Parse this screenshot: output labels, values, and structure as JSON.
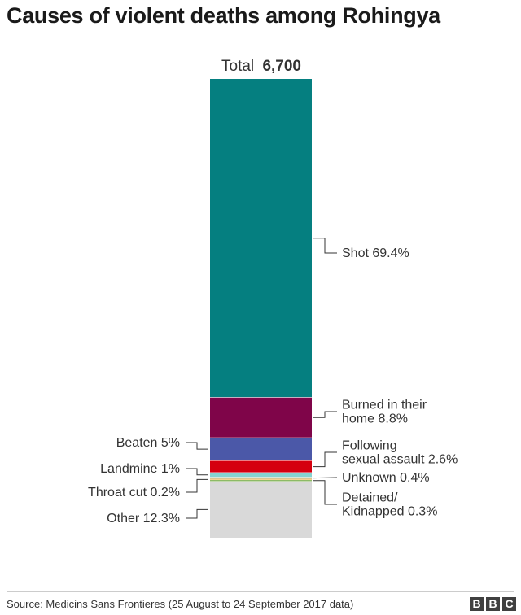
{
  "title": "Causes of violent deaths among Rohingya",
  "chart_data": {
    "type": "bar",
    "stacked": true,
    "total_label": "Total",
    "total_value": "6,700",
    "segments": [
      {
        "name": "Shot",
        "value": 69.4,
        "label": [
          "Shot 69.4%"
        ],
        "color": "#057f80",
        "side": "right"
      },
      {
        "name": "Burned in their home",
        "value": 8.8,
        "label": [
          "Burned in their",
          "home 8.8%"
        ],
        "color": "#7f0549",
        "side": "right"
      },
      {
        "name": "Beaten",
        "value": 5,
        "label": [
          "Beaten 5%"
        ],
        "color": "#4b58a8",
        "side": "left"
      },
      {
        "name": "Following sexual assault",
        "value": 2.6,
        "label": [
          "Following",
          "sexual assault 2.6%"
        ],
        "color": "#d5000f",
        "side": "right"
      },
      {
        "name": "Landmine",
        "value": 1,
        "label": [
          "Landmine 1%"
        ],
        "color": "#86d3d0",
        "side": "left"
      },
      {
        "name": "Unknown",
        "value": 0.4,
        "label": [
          "Unknown 0.4%"
        ],
        "color": "#b28c1f",
        "side": "right"
      },
      {
        "name": "Throat cut",
        "value": 0.2,
        "label": [
          "Throat cut 0.2%"
        ],
        "color": "#f2a11f",
        "side": "left"
      },
      {
        "name": "Detained/Kidnapped",
        "value": 0.3,
        "label": [
          "Detained/",
          "Kidnapped 0.3%"
        ],
        "color": "#67a332",
        "side": "right"
      },
      {
        "name": "Other",
        "value": 12.3,
        "label": [
          "Other 12.3%"
        ],
        "color": "#d9d9d9",
        "side": "left"
      }
    ]
  },
  "source": "Source: Medicins Sans Frontieres (25 August to 24 September 2017 data)",
  "logo": [
    "B",
    "B",
    "C"
  ]
}
